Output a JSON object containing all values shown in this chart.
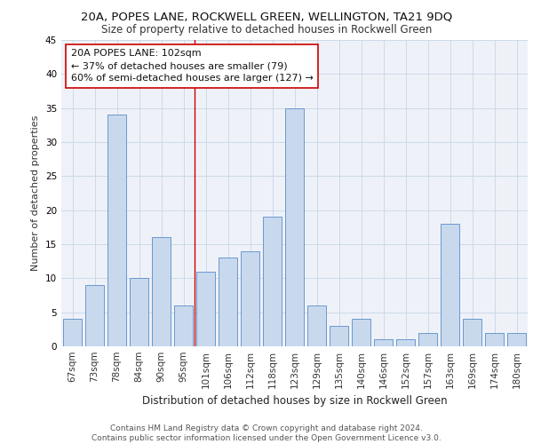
{
  "title1": "20A, POPES LANE, ROCKWELL GREEN, WELLINGTON, TA21 9DQ",
  "title2": "Size of property relative to detached houses in Rockwell Green",
  "xlabel": "Distribution of detached houses by size in Rockwell Green",
  "ylabel": "Number of detached properties",
  "categories": [
    "67sqm",
    "73sqm",
    "78sqm",
    "84sqm",
    "90sqm",
    "95sqm",
    "101sqm",
    "106sqm",
    "112sqm",
    "118sqm",
    "123sqm",
    "129sqm",
    "135sqm",
    "140sqm",
    "146sqm",
    "152sqm",
    "157sqm",
    "163sqm",
    "169sqm",
    "174sqm",
    "180sqm"
  ],
  "values": [
    4,
    9,
    34,
    10,
    16,
    6,
    11,
    13,
    14,
    19,
    35,
    6,
    3,
    4,
    1,
    1,
    2,
    18,
    4,
    2,
    2
  ],
  "bar_color": "#c8d9ee",
  "bar_edge_color": "#5b8cc8",
  "vline_x": 6,
  "vline_color": "#cc0000",
  "annotation_text": "20A POPES LANE: 102sqm\n← 37% of detached houses are smaller (79)\n60% of semi-detached houses are larger (127) →",
  "annotation_box_color": "#ffffff",
  "annotation_box_edge": "#cc0000",
  "ylim": [
    0,
    45
  ],
  "yticks": [
    0,
    5,
    10,
    15,
    20,
    25,
    30,
    35,
    40,
    45
  ],
  "grid_color": "#ccd9e8",
  "background_color": "#eef2f8",
  "footer_text": "Contains HM Land Registry data © Crown copyright and database right 2024.\nContains public sector information licensed under the Open Government Licence v3.0.",
  "title1_fontsize": 9.5,
  "title2_fontsize": 8.5,
  "xlabel_fontsize": 8.5,
  "ylabel_fontsize": 8,
  "tick_fontsize": 7.5,
  "annotation_fontsize": 8,
  "footer_fontsize": 6.5
}
